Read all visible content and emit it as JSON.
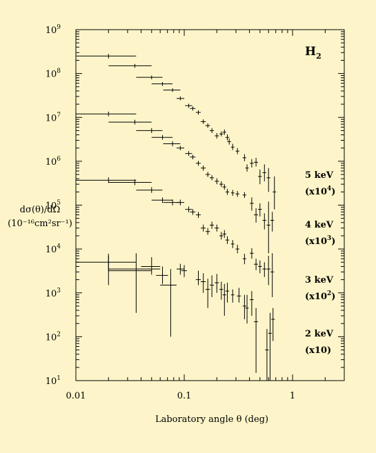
{
  "chart_data": {
    "type": "scatter",
    "title": "",
    "xlabel": "Laboratory angle θ (deg)",
    "ylabel_lines": [
      "dσ(θ)/dΩ",
      "(10⁻¹⁶cm²sr⁻¹)"
    ],
    "x_scale": "log",
    "y_scale": "log",
    "xlim": [
      0.01,
      3
    ],
    "ylim": [
      10,
      1000000000
    ],
    "x_ticks": [
      {
        "value": 0.01,
        "label": "0.01"
      },
      {
        "value": 0.1,
        "label": "0.1"
      },
      {
        "value": 1,
        "label": "1"
      }
    ],
    "y_ticks": [
      {
        "value": 10,
        "base": "10",
        "exp": "1"
      },
      {
        "value": 100,
        "base": "10",
        "exp": "2"
      },
      {
        "value": 1000,
        "base": "10",
        "exp": "3"
      },
      {
        "value": 10000,
        "base": "10",
        "exp": "4"
      },
      {
        "value": 100000,
        "base": "10",
        "exp": "5"
      },
      {
        "value": 1000000,
        "base": "10",
        "exp": "6"
      },
      {
        "value": 10000000,
        "base": "10",
        "exp": "7"
      },
      {
        "value": 100000000,
        "base": "10",
        "exp": "8"
      },
      {
        "value": 1000000000,
        "base": "10",
        "exp": "9"
      }
    ],
    "annotation": {
      "main": "H",
      "sub": "2"
    },
    "grid": false,
    "legend": "none",
    "series": [
      {
        "energy": "5 keV",
        "scale_base": "(x10",
        "scale_exp": "4",
        "scale_close": ")",
        "points": [
          {
            "x": 0.02,
            "y": 250000000,
            "xlo": 0.01,
            "xhi": 0.036,
            "ylo": 220000000,
            "yhi": 280000000
          },
          {
            "x": 0.035,
            "y": 150000000,
            "xlo": 0.02,
            "xhi": 0.05,
            "ylo": 135000000,
            "yhi": 165000000
          },
          {
            "x": 0.05,
            "y": 82000000,
            "xlo": 0.036,
            "xhi": 0.063,
            "ylo": 74000000,
            "yhi": 90000000
          },
          {
            "x": 0.063,
            "y": 58000000,
            "xlo": 0.05,
            "xhi": 0.078,
            "ylo": 52000000,
            "yhi": 64000000
          },
          {
            "x": 0.078,
            "y": 42000000,
            "xlo": 0.064,
            "xhi": 0.092,
            "ylo": 38000000,
            "yhi": 46000000
          },
          {
            "x": 0.092,
            "y": 27000000,
            "xlo": 0.085,
            "xhi": 0.1,
            "ylo": 24500000,
            "yhi": 30000000
          },
          {
            "x": 0.11,
            "y": 18500000,
            "xlo": 0.102,
            "xhi": 0.118,
            "ylo": 16500000,
            "yhi": 20500000
          },
          {
            "x": 0.12,
            "y": 16000000,
            "xlo": 0.113,
            "xhi": 0.127,
            "ylo": 14300000,
            "yhi": 17800000
          },
          {
            "x": 0.135,
            "y": 13000000,
            "xlo": 0.128,
            "xhi": 0.142,
            "ylo": 11600000,
            "yhi": 14500000
          },
          {
            "x": 0.15,
            "y": 8000000,
            "xlo": 0.142,
            "xhi": 0.158,
            "ylo": 7100000,
            "yhi": 9000000
          },
          {
            "x": 0.165,
            "y": 6500000,
            "xlo": 0.157,
            "xhi": 0.173,
            "ylo": 5800000,
            "yhi": 7300000
          },
          {
            "x": 0.18,
            "y": 5000000,
            "xlo": 0.172,
            "xhi": 0.188,
            "ylo": 4400000,
            "yhi": 5700000
          },
          {
            "x": 0.2,
            "y": 3800000,
            "xlo": 0.191,
            "xhi": 0.209,
            "ylo": 3300000,
            "yhi": 4400000
          },
          {
            "x": 0.22,
            "y": 4200000,
            "xlo": 0.211,
            "xhi": 0.229,
            "ylo": 3700000,
            "yhi": 4800000
          },
          {
            "x": 0.235,
            "y": 4600000,
            "xlo": 0.226,
            "xhi": 0.244,
            "ylo": 4000000,
            "yhi": 5300000
          },
          {
            "x": 0.25,
            "y": 3500000,
            "xlo": 0.24,
            "xhi": 0.26,
            "ylo": 3000000,
            "yhi": 4100000
          },
          {
            "x": 0.26,
            "y": 2800000,
            "xlo": 0.25,
            "xhi": 0.27,
            "ylo": 2400000,
            "yhi": 3300000
          },
          {
            "x": 0.28,
            "y": 2100000,
            "xlo": 0.27,
            "xhi": 0.29,
            "ylo": 1800000,
            "yhi": 2500000
          },
          {
            "x": 0.31,
            "y": 1700000,
            "xlo": 0.298,
            "xhi": 0.322,
            "ylo": 1450000,
            "yhi": 2000000
          },
          {
            "x": 0.36,
            "y": 1200000,
            "xlo": 0.346,
            "xhi": 0.374,
            "ylo": 1000000,
            "yhi": 1450000
          },
          {
            "x": 0.38,
            "y": 700000,
            "xlo": 0.366,
            "xhi": 0.394,
            "ylo": 580000,
            "yhi": 850000
          },
          {
            "x": 0.42,
            "y": 900000,
            "xlo": 0.403,
            "xhi": 0.437,
            "ylo": 720000,
            "yhi": 1120000
          },
          {
            "x": 0.46,
            "y": 950000,
            "xlo": 0.44,
            "xhi": 0.48,
            "ylo": 760000,
            "yhi": 1200000
          },
          {
            "x": 0.5,
            "y": 450000,
            "xlo": 0.48,
            "xhi": 0.52,
            "ylo": 300000,
            "yhi": 650000
          },
          {
            "x": 0.55,
            "y": 550000,
            "xlo": 0.528,
            "xhi": 0.572,
            "ylo": 350000,
            "yhi": 850000
          },
          {
            "x": 0.6,
            "y": 420000,
            "xlo": 0.576,
            "xhi": 0.624,
            "ylo": 200000,
            "yhi": 700000
          },
          {
            "x": 0.68,
            "y": 200000,
            "xlo": 0.655,
            "xhi": 0.705,
            "ylo": 80000,
            "yhi": 450000
          }
        ]
      },
      {
        "energy": "4 keV",
        "scale_base": "(x10",
        "scale_exp": "3",
        "scale_close": ")",
        "points": [
          {
            "x": 0.02,
            "y": 12000000,
            "xlo": 0.01,
            "xhi": 0.036,
            "ylo": 10600000,
            "yhi": 13500000
          },
          {
            "x": 0.035,
            "y": 7800000,
            "xlo": 0.02,
            "xhi": 0.05,
            "ylo": 6900000,
            "yhi": 8800000
          },
          {
            "x": 0.05,
            "y": 5000000,
            "xlo": 0.036,
            "xhi": 0.063,
            "ylo": 4400000,
            "yhi": 5700000
          },
          {
            "x": 0.063,
            "y": 3500000,
            "xlo": 0.05,
            "xhi": 0.078,
            "ylo": 3100000,
            "yhi": 3950000
          },
          {
            "x": 0.078,
            "y": 2500000,
            "xlo": 0.064,
            "xhi": 0.092,
            "ylo": 2200000,
            "yhi": 2850000
          },
          {
            "x": 0.092,
            "y": 2000000,
            "xlo": 0.085,
            "xhi": 0.1,
            "ylo": 1780000,
            "yhi": 2250000
          },
          {
            "x": 0.11,
            "y": 1500000,
            "xlo": 0.102,
            "xhi": 0.118,
            "ylo": 1330000,
            "yhi": 1700000
          },
          {
            "x": 0.12,
            "y": 1250000,
            "xlo": 0.113,
            "xhi": 0.127,
            "ylo": 1110000,
            "yhi": 1400000
          },
          {
            "x": 0.135,
            "y": 900000,
            "xlo": 0.128,
            "xhi": 0.142,
            "ylo": 790000,
            "yhi": 1020000
          },
          {
            "x": 0.15,
            "y": 700000,
            "xlo": 0.142,
            "xhi": 0.158,
            "ylo": 610000,
            "yhi": 800000
          },
          {
            "x": 0.165,
            "y": 500000,
            "xlo": 0.157,
            "xhi": 0.173,
            "ylo": 440000,
            "yhi": 570000
          },
          {
            "x": 0.18,
            "y": 420000,
            "xlo": 0.172,
            "xhi": 0.188,
            "ylo": 370000,
            "yhi": 480000
          },
          {
            "x": 0.2,
            "y": 350000,
            "xlo": 0.191,
            "xhi": 0.209,
            "ylo": 300000,
            "yhi": 410000
          },
          {
            "x": 0.22,
            "y": 300000,
            "xlo": 0.211,
            "xhi": 0.229,
            "ylo": 260000,
            "yhi": 350000
          },
          {
            "x": 0.235,
            "y": 260000,
            "xlo": 0.226,
            "xhi": 0.244,
            "ylo": 225000,
            "yhi": 300000
          },
          {
            "x": 0.25,
            "y": 200000,
            "xlo": 0.24,
            "xhi": 0.26,
            "ylo": 172000,
            "yhi": 235000
          },
          {
            "x": 0.28,
            "y": 190000,
            "xlo": 0.27,
            "xhi": 0.29,
            "ylo": 163000,
            "yhi": 222000
          },
          {
            "x": 0.31,
            "y": 180000,
            "xlo": 0.298,
            "xhi": 0.322,
            "ylo": 155000,
            "yhi": 210000
          },
          {
            "x": 0.36,
            "y": 170000,
            "xlo": 0.346,
            "xhi": 0.374,
            "ylo": 146000,
            "yhi": 198000
          },
          {
            "x": 0.42,
            "y": 110000,
            "xlo": 0.403,
            "xhi": 0.437,
            "ylo": 75000,
            "yhi": 150000
          },
          {
            "x": 0.46,
            "y": 60000,
            "xlo": 0.44,
            "xhi": 0.48,
            "ylo": 40000,
            "yhi": 85000
          },
          {
            "x": 0.5,
            "y": 80000,
            "xlo": 0.48,
            "xhi": 0.52,
            "ylo": 55000,
            "yhi": 110000
          },
          {
            "x": 0.55,
            "y": 45000,
            "xlo": 0.528,
            "xhi": 0.572,
            "ylo": 28000,
            "yhi": 65000
          },
          {
            "x": 0.6,
            "y": 35000,
            "xlo": 0.576,
            "xhi": 0.624,
            "ylo": 8000,
            "yhi": 120000
          },
          {
            "x": 0.65,
            "y": 45000,
            "xlo": 0.625,
            "xhi": 0.675,
            "ylo": 25000,
            "yhi": 70000
          }
        ]
      },
      {
        "energy": "3 keV",
        "scale_base": "(x10",
        "scale_exp": "2",
        "scale_close": ")",
        "points": [
          {
            "x": 0.02,
            "y": 370000,
            "xlo": 0.01,
            "xhi": 0.036,
            "ylo": 320000,
            "yhi": 430000
          },
          {
            "x": 0.035,
            "y": 330000,
            "xlo": 0.02,
            "xhi": 0.05,
            "ylo": 285000,
            "yhi": 385000
          },
          {
            "x": 0.05,
            "y": 220000,
            "xlo": 0.036,
            "xhi": 0.063,
            "ylo": 190000,
            "yhi": 256000
          },
          {
            "x": 0.063,
            "y": 130000,
            "xlo": 0.05,
            "xhi": 0.078,
            "ylo": 112000,
            "yhi": 150000
          },
          {
            "x": 0.078,
            "y": 115000,
            "xlo": 0.064,
            "xhi": 0.092,
            "ylo": 99000,
            "yhi": 134000
          },
          {
            "x": 0.092,
            "y": 115000,
            "xlo": 0.085,
            "xhi": 0.1,
            "ylo": 99000,
            "yhi": 134000
          },
          {
            "x": 0.11,
            "y": 80000,
            "xlo": 0.102,
            "xhi": 0.118,
            "ylo": 69000,
            "yhi": 93000
          },
          {
            "x": 0.12,
            "y": 70000,
            "xlo": 0.113,
            "xhi": 0.127,
            "ylo": 60000,
            "yhi": 81000
          },
          {
            "x": 0.135,
            "y": 60000,
            "xlo": 0.128,
            "xhi": 0.142,
            "ylo": 51000,
            "yhi": 70000
          },
          {
            "x": 0.15,
            "y": 30000,
            "xlo": 0.142,
            "xhi": 0.158,
            "ylo": 25000,
            "yhi": 36000
          },
          {
            "x": 0.165,
            "y": 25000,
            "xlo": 0.157,
            "xhi": 0.173,
            "ylo": 21000,
            "yhi": 30000
          },
          {
            "x": 0.18,
            "y": 35000,
            "xlo": 0.172,
            "xhi": 0.188,
            "ylo": 29000,
            "yhi": 42000
          },
          {
            "x": 0.2,
            "y": 30000,
            "xlo": 0.191,
            "xhi": 0.209,
            "ylo": 25000,
            "yhi": 36000
          },
          {
            "x": 0.22,
            "y": 20000,
            "xlo": 0.211,
            "xhi": 0.229,
            "ylo": 16500,
            "yhi": 24500
          },
          {
            "x": 0.235,
            "y": 22000,
            "xlo": 0.226,
            "xhi": 0.244,
            "ylo": 18000,
            "yhi": 27000
          },
          {
            "x": 0.25,
            "y": 16000,
            "xlo": 0.24,
            "xhi": 0.26,
            "ylo": 13000,
            "yhi": 19500
          },
          {
            "x": 0.28,
            "y": 13000,
            "xlo": 0.27,
            "xhi": 0.29,
            "ylo": 10500,
            "yhi": 16000
          },
          {
            "x": 0.31,
            "y": 10000,
            "xlo": 0.298,
            "xhi": 0.322,
            "ylo": 8000,
            "yhi": 12500
          },
          {
            "x": 0.36,
            "y": 6000,
            "xlo": 0.346,
            "xhi": 0.374,
            "ylo": 4500,
            "yhi": 7800
          },
          {
            "x": 0.42,
            "y": 8000,
            "xlo": 0.403,
            "xhi": 0.437,
            "ylo": 6000,
            "yhi": 10500
          },
          {
            "x": 0.46,
            "y": 4500,
            "xlo": 0.44,
            "xhi": 0.48,
            "ylo": 3300,
            "yhi": 6000
          },
          {
            "x": 0.5,
            "y": 4000,
            "xlo": 0.48,
            "xhi": 0.52,
            "ylo": 2800,
            "yhi": 5500
          },
          {
            "x": 0.55,
            "y": 3500,
            "xlo": 0.528,
            "xhi": 0.572,
            "ylo": 2300,
            "yhi": 5000
          },
          {
            "x": 0.6,
            "y": 3500,
            "xlo": 0.576,
            "xhi": 0.624,
            "ylo": 1500,
            "yhi": 7000
          },
          {
            "x": 0.65,
            "y": 3000,
            "xlo": 0.625,
            "xhi": 0.675,
            "ylo": 800,
            "yhi": 8000
          }
        ]
      },
      {
        "energy": "2 keV",
        "scale_base": "(x10)",
        "scale_exp": "",
        "scale_close": "",
        "points": [
          {
            "x": 0.02,
            "y": 5000,
            "xlo": 0.01,
            "xhi": 0.036,
            "ylo": 3200,
            "yhi": 7800
          },
          {
            "x": 0.02,
            "y": 3200,
            "xlo": 0.02,
            "xhi": 0.05,
            "ylo": 1500,
            "yhi": 7000
          },
          {
            "x": 0.036,
            "y": 3500,
            "xlo": 0.02,
            "xhi": 0.06,
            "ylo": 350,
            "yhi": 8000
          },
          {
            "x": 0.05,
            "y": 4000,
            "xlo": 0.04,
            "xhi": 0.06,
            "ylo": 2600,
            "yhi": 6500
          },
          {
            "x": 0.063,
            "y": 2500,
            "xlo": 0.055,
            "xhi": 0.071,
            "ylo": 1600,
            "yhi": 4000
          },
          {
            "x": 0.075,
            "y": 1500,
            "xlo": 0.06,
            "xhi": 0.085,
            "ylo": 100,
            "yhi": 3500
          },
          {
            "x": 0.092,
            "y": 3500,
            "xlo": 0.085,
            "xhi": 0.1,
            "ylo": 2600,
            "yhi": 4600
          },
          {
            "x": 0.1,
            "y": 3200,
            "xlo": 0.094,
            "xhi": 0.106,
            "ylo": 2300,
            "yhi": 4300
          },
          {
            "x": 0.135,
            "y": 2000,
            "xlo": 0.128,
            "xhi": 0.142,
            "ylo": 1500,
            "yhi": 3200
          },
          {
            "x": 0.15,
            "y": 1800,
            "xlo": 0.142,
            "xhi": 0.158,
            "ylo": 1000,
            "yhi": 2800
          },
          {
            "x": 0.165,
            "y": 1200,
            "xlo": 0.157,
            "xhi": 0.173,
            "ylo": 450,
            "yhi": 2100
          },
          {
            "x": 0.18,
            "y": 1500,
            "xlo": 0.172,
            "xhi": 0.188,
            "ylo": 800,
            "yhi": 2500
          },
          {
            "x": 0.2,
            "y": 1700,
            "xlo": 0.191,
            "xhi": 0.209,
            "ylo": 1000,
            "yhi": 2700
          },
          {
            "x": 0.22,
            "y": 1200,
            "xlo": 0.211,
            "xhi": 0.229,
            "ylo": 700,
            "yhi": 1800
          },
          {
            "x": 0.235,
            "y": 900,
            "xlo": 0.226,
            "xhi": 0.244,
            "ylo": 300,
            "yhi": 1600
          },
          {
            "x": 0.25,
            "y": 1100,
            "xlo": 0.24,
            "xhi": 0.26,
            "ylo": 600,
            "yhi": 1700
          },
          {
            "x": 0.28,
            "y": 900,
            "xlo": 0.27,
            "xhi": 0.29,
            "ylo": 600,
            "yhi": 1200
          },
          {
            "x": 0.32,
            "y": 850,
            "xlo": 0.306,
            "xhi": 0.334,
            "ylo": 600,
            "yhi": 1300
          },
          {
            "x": 0.36,
            "y": 500,
            "xlo": 0.346,
            "xhi": 0.374,
            "ylo": 250,
            "yhi": 900
          },
          {
            "x": 0.38,
            "y": 450,
            "xlo": 0.366,
            "xhi": 0.394,
            "ylo": 200,
            "yhi": 900
          },
          {
            "x": 0.42,
            "y": 700,
            "xlo": 0.403,
            "xhi": 0.437,
            "ylo": 300,
            "yhi": 1100
          },
          {
            "x": 0.46,
            "y": 220,
            "xlo": 0.44,
            "xhi": 0.48,
            "ylo": 15,
            "yhi": 450
          },
          {
            "x": 0.58,
            "y": 50,
            "xlo": 0.558,
            "xhi": 0.602,
            "ylo": 10,
            "yhi": 150
          },
          {
            "x": 0.62,
            "y": 120,
            "xlo": 0.596,
            "xhi": 0.644,
            "ylo": 10,
            "yhi": 350
          },
          {
            "x": 0.66,
            "y": 250,
            "xlo": 0.635,
            "xhi": 0.685,
            "ylo": 80,
            "yhi": 450
          }
        ]
      }
    ]
  }
}
